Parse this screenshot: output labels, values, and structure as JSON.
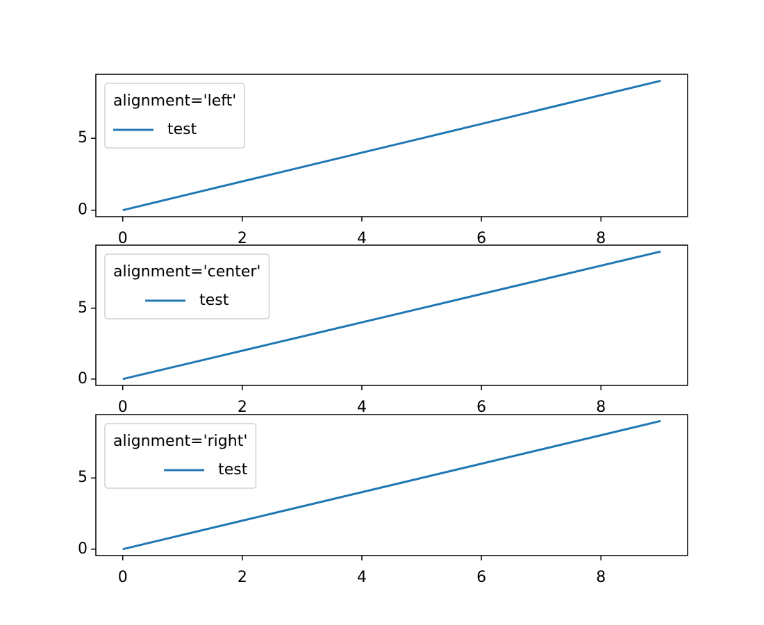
{
  "chart_data": [
    {
      "type": "line",
      "legend_title": "alignment='left'",
      "legend_alignment": "left",
      "legend_corner": "upper left",
      "x": [
        0,
        1,
        2,
        3,
        4,
        5,
        6,
        7,
        8,
        9
      ],
      "series": [
        {
          "name": "test",
          "color": "#1f77b4",
          "values": [
            0,
            1,
            2,
            3,
            4,
            5,
            6,
            7,
            8,
            9
          ]
        }
      ],
      "xlim": [
        -0.45,
        9.45
      ],
      "ylim": [
        -0.45,
        9.45
      ],
      "xticks": [
        0,
        2,
        4,
        6,
        8
      ],
      "yticks": [
        0,
        5
      ]
    },
    {
      "type": "line",
      "legend_title": "alignment='center'",
      "legend_alignment": "center",
      "legend_corner": "upper left",
      "x": [
        0,
        1,
        2,
        3,
        4,
        5,
        6,
        7,
        8,
        9
      ],
      "series": [
        {
          "name": "test",
          "color": "#1f77b4",
          "values": [
            0,
            1,
            2,
            3,
            4,
            5,
            6,
            7,
            8,
            9
          ]
        }
      ],
      "xlim": [
        -0.45,
        9.45
      ],
      "ylim": [
        -0.45,
        9.45
      ],
      "xticks": [
        0,
        2,
        4,
        6,
        8
      ],
      "yticks": [
        0,
        5
      ]
    },
    {
      "type": "line",
      "legend_title": "alignment='right'",
      "legend_alignment": "right",
      "legend_corner": "upper left",
      "x": [
        0,
        1,
        2,
        3,
        4,
        5,
        6,
        7,
        8,
        9
      ],
      "series": [
        {
          "name": "test",
          "color": "#1f77b4",
          "values": [
            0,
            1,
            2,
            3,
            4,
            5,
            6,
            7,
            8,
            9
          ]
        }
      ],
      "xlim": [
        -0.45,
        9.45
      ],
      "ylim": [
        -0.45,
        9.45
      ],
      "xticks": [
        0,
        2,
        4,
        6,
        8
      ],
      "yticks": [
        0,
        5
      ]
    }
  ]
}
